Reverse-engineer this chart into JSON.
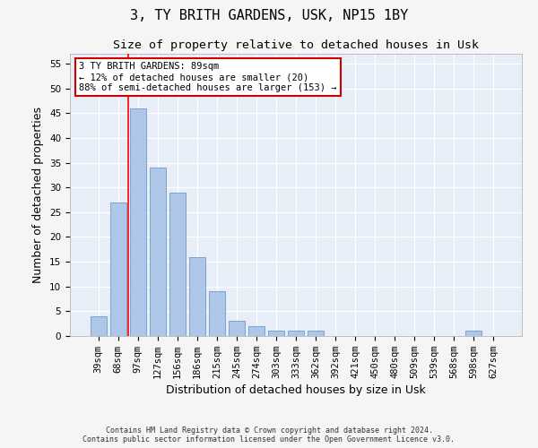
{
  "title": "3, TY BRITH GARDENS, USK, NP15 1BY",
  "subtitle": "Size of property relative to detached houses in Usk",
  "xlabel": "Distribution of detached houses by size in Usk",
  "ylabel": "Number of detached properties",
  "categories": [
    "39sqm",
    "68sqm",
    "97sqm",
    "127sqm",
    "156sqm",
    "186sqm",
    "215sqm",
    "245sqm",
    "274sqm",
    "303sqm",
    "333sqm",
    "362sqm",
    "392sqm",
    "421sqm",
    "450sqm",
    "480sqm",
    "509sqm",
    "539sqm",
    "568sqm",
    "598sqm",
    "627sqm"
  ],
  "values": [
    4,
    27,
    46,
    34,
    29,
    16,
    9,
    3,
    2,
    1,
    1,
    1,
    0,
    0,
    0,
    0,
    0,
    0,
    0,
    1,
    0
  ],
  "bar_color": "#aec6e8",
  "bar_edge_color": "#5a8fc2",
  "bar_width": 0.8,
  "ylim": [
    0,
    57
  ],
  "yticks": [
    0,
    5,
    10,
    15,
    20,
    25,
    30,
    35,
    40,
    45,
    50,
    55
  ],
  "red_line_x": 1.5,
  "annotation_text": "3 TY BRITH GARDENS: 89sqm\n← 12% of detached houses are smaller (20)\n88% of semi-detached houses are larger (153) →",
  "annotation_box_color": "#ffffff",
  "annotation_box_edge_color": "#cc0000",
  "footer_line1": "Contains HM Land Registry data © Crown copyright and database right 2024.",
  "footer_line2": "Contains public sector information licensed under the Open Government Licence v3.0.",
  "background_color": "#e8eef8",
  "grid_color": "#ffffff",
  "title_fontsize": 11,
  "subtitle_fontsize": 9.5,
  "tick_fontsize": 7.5,
  "ylabel_fontsize": 9,
  "xlabel_fontsize": 9,
  "annotation_fontsize": 7.5,
  "footer_fontsize": 6
}
